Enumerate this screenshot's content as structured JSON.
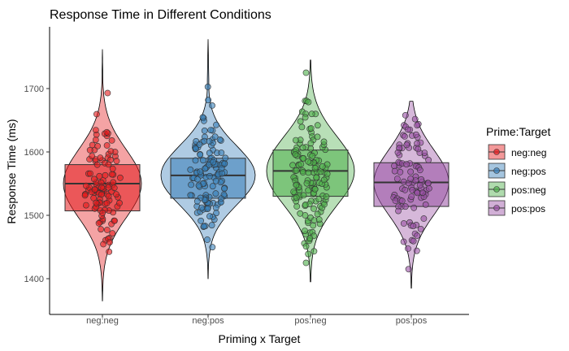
{
  "chart_data": {
    "type": "violin",
    "title": "Response Time in Different Conditions",
    "xlabel": "Priming x Target",
    "ylabel": "Response Time (ms)",
    "categories": [
      "neg:neg",
      "neg:pos",
      "pos:neg",
      "pos:pos"
    ],
    "ylim": [
      1345,
      1780
    ],
    "yticks": [
      1400,
      1500,
      1600,
      1700
    ],
    "grid": false,
    "legend": {
      "title": "Prime:Target",
      "position": "right",
      "items": [
        "neg:neg",
        "neg:pos",
        "pos:neg",
        "pos:pos"
      ]
    },
    "colors": [
      "#e41a1c",
      "#377eb8",
      "#4daf4a",
      "#984ea3"
    ],
    "series": [
      {
        "name": "neg:neg",
        "min": 1365,
        "q1": 1507,
        "median": 1550,
        "q3": 1580,
        "max": 1762,
        "n": 110
      },
      {
        "name": "neg:pos",
        "min": 1400,
        "q1": 1527,
        "median": 1563,
        "q3": 1590,
        "max": 1778,
        "n": 130
      },
      {
        "name": "pos:neg",
        "min": 1395,
        "q1": 1530,
        "median": 1570,
        "q3": 1603,
        "max": 1745,
        "n": 140
      },
      {
        "name": "pos:pos",
        "min": 1385,
        "q1": 1514,
        "median": 1552,
        "q3": 1583,
        "max": 1680,
        "n": 100
      }
    ]
  }
}
